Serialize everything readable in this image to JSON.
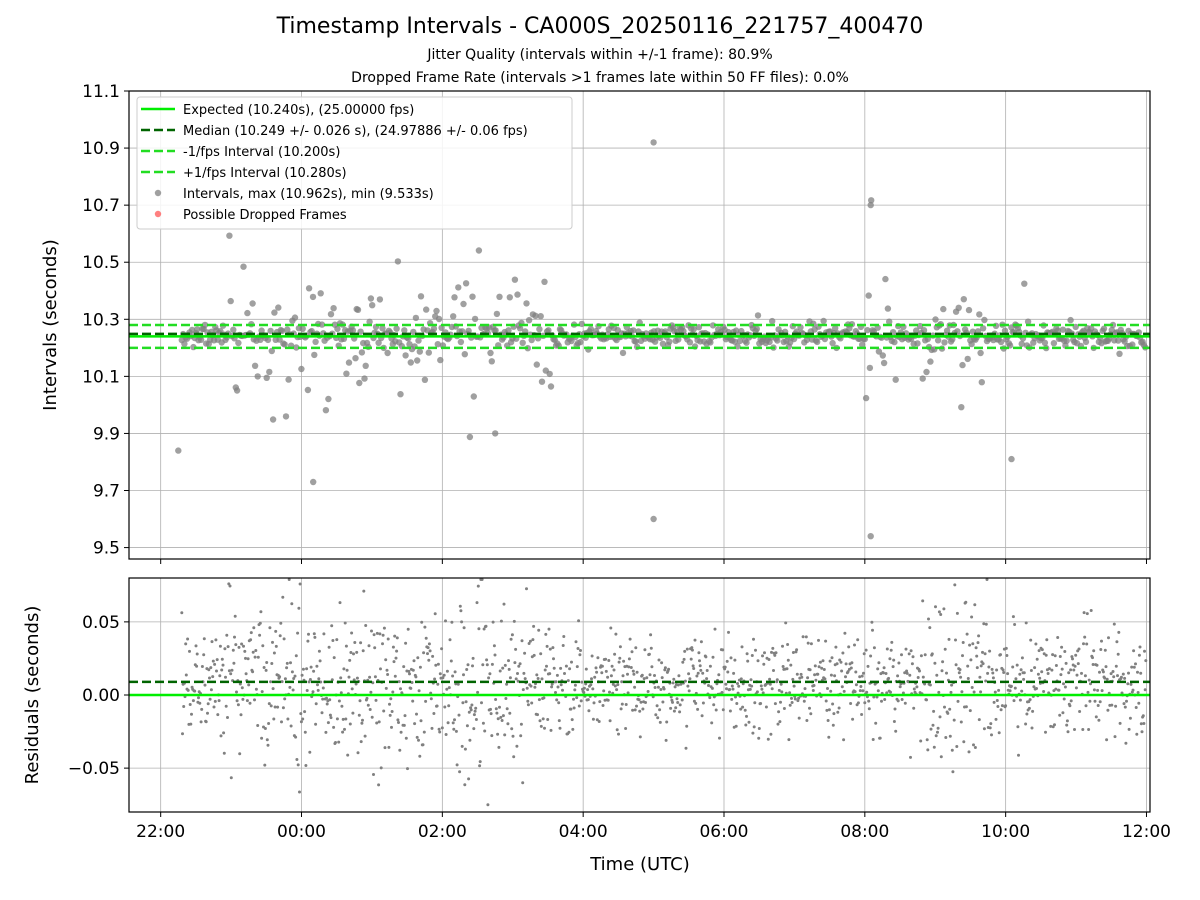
{
  "title": "Timestamp Intervals - CA000S_20250116_221757_400470",
  "subtitle_1": "Jitter Quality (intervals within +/-1 frame): 80.9%",
  "subtitle_2": "Dropped Frame Rate (intervals >1 frames late within 50 FF files): 0.0%",
  "colors": {
    "expected": "#00ee00",
    "median": "#006400",
    "bounds": "#22dd22",
    "points": "#808080",
    "dropped": "#ff5555",
    "grid": "#b0b0b0"
  },
  "chart_data": [
    {
      "type": "scatter",
      "panel": "intervals",
      "ylabel": "Intervals (seconds)",
      "xlabel": "",
      "ylim": [
        9.46,
        11.1
      ],
      "yticks": [
        "9.5",
        "9.7",
        "9.9",
        "10.1",
        "10.3",
        "10.5",
        "10.7",
        "10.9",
        "11.1"
      ],
      "xtick_labels": [
        "22:00",
        "00:00",
        "02:00",
        "04:00",
        "06:00",
        "08:00",
        "10:00",
        "12:00"
      ],
      "grid": true,
      "legend_position": "upper-left",
      "lines": [
        {
          "name": "Expected (10.240s), (25.00000 fps)",
          "y": 10.24,
          "style": "solid",
          "color": "#00ee00"
        },
        {
          "name": "Median (10.249 +/- 0.026 s), (24.97886 +/- 0.06 fps)",
          "y": 10.249,
          "style": "dashed",
          "color": "#006400"
        },
        {
          "name": "-1/fps Interval (10.200s)",
          "y": 10.2,
          "style": "dashed",
          "color": "#22dd22"
        },
        {
          "name": "+1/fps Interval (10.280s)",
          "y": 10.28,
          "style": "dashed",
          "color": "#22dd22"
        }
      ],
      "scatter_series": [
        {
          "name": "Intervals, max (10.962s), min (9.533s)",
          "color": "#808080"
        },
        {
          "name": "Possible Dropped Frames",
          "color": "#ff5555"
        }
      ],
      "notable_points": [
        {
          "time": "22:15",
          "y": 9.84
        },
        {
          "time": "00:10",
          "y": 9.73
        },
        {
          "time": "02:45",
          "y": 9.9
        },
        {
          "time": "05:00",
          "y": 10.92
        },
        {
          "time": "05:00",
          "y": 9.6
        },
        {
          "time": "08:05",
          "y": 10.7
        },
        {
          "time": "08:05",
          "y": 9.54
        },
        {
          "time": "10:05",
          "y": 9.81
        }
      ],
      "interval_summary": {
        "count_approx": 2900,
        "typical_range": [
          10.2,
          10.28
        ]
      }
    },
    {
      "type": "scatter",
      "panel": "residuals",
      "ylabel": "Residuals (seconds)",
      "xlabel": "Time (UTC)",
      "ylim": [
        -0.08,
        0.08
      ],
      "yticks": [
        "−0.05",
        "0.00",
        "0.05"
      ],
      "xtick_labels": [
        "22:00",
        "00:00",
        "02:00",
        "04:00",
        "06:00",
        "08:00",
        "10:00",
        "12:00"
      ],
      "grid": true,
      "lines": [
        {
          "name": "Expected",
          "y": 0.0,
          "style": "solid",
          "color": "#00ee00"
        },
        {
          "name": "Median",
          "y": 0.009,
          "style": "dashed",
          "color": "#006400"
        }
      ],
      "residual_summary": {
        "count_approx": 2900,
        "high_scatter_periods": [
          "23:00-03:30",
          "08:45-09:45"
        ]
      }
    }
  ]
}
